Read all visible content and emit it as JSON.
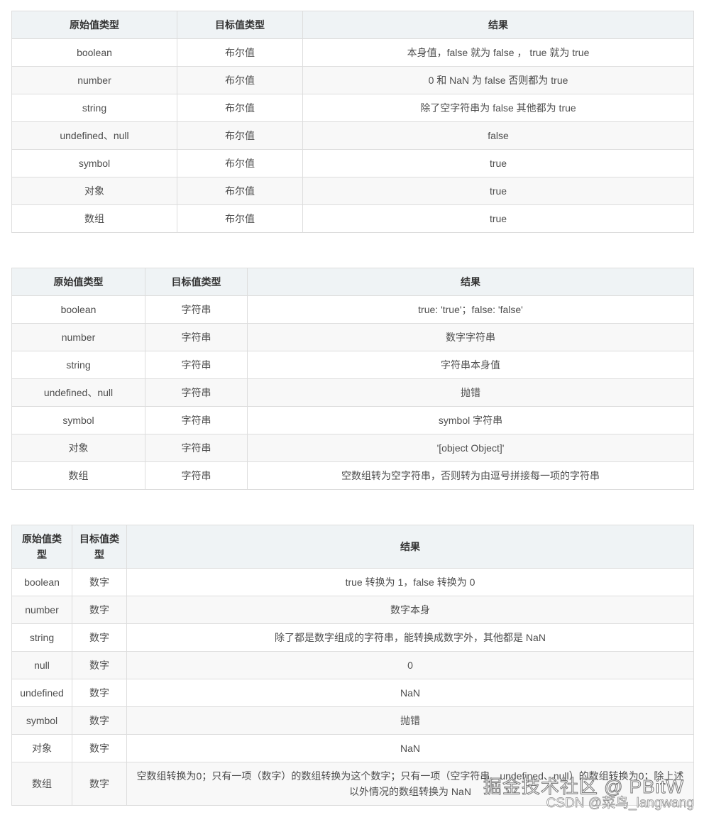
{
  "tables": [
    {
      "headers": [
        "原始值类型",
        "目标值类型",
        "结果"
      ],
      "col_widths_note": "",
      "rows": [
        [
          "boolean",
          "布尔值",
          "本身值，false 就为 false ， true 就为 true"
        ],
        [
          "number",
          "布尔值",
          "0 和 NaN 为 false 否则都为 true"
        ],
        [
          "string",
          "布尔值",
          "除了空字符串为 false 其他都为 true"
        ],
        [
          "undefined、null",
          "布尔值",
          "false"
        ],
        [
          "symbol",
          "布尔值",
          "true"
        ],
        [
          "对象",
          "布尔值",
          "true"
        ],
        [
          "数组",
          "布尔值",
          "true"
        ]
      ]
    },
    {
      "headers": [
        "原始值类型",
        "目标值类型",
        "结果"
      ],
      "rows": [
        [
          "boolean",
          "字符串",
          "true: 'true'；false: 'false'"
        ],
        [
          "number",
          "字符串",
          "数字字符串"
        ],
        [
          "string",
          "字符串",
          "字符串本身值"
        ],
        [
          "undefined、null",
          "字符串",
          "抛错"
        ],
        [
          "symbol",
          "字符串",
          "symbol 字符串"
        ],
        [
          "对象",
          "字符串",
          "'[object Object]'"
        ],
        [
          "数组",
          "字符串",
          "空数组转为空字符串，否则转为由逗号拼接每一项的字符串"
        ]
      ]
    },
    {
      "headers": [
        "原始值类型",
        "目标值类型",
        "结果"
      ],
      "rows": [
        [
          "boolean",
          "数字",
          "true 转换为 1，false 转换为 0"
        ],
        [
          "number",
          "数字",
          "数字本身"
        ],
        [
          "string",
          "数字",
          "除了都是数字组成的字符串，能转换成数字外，其他都是 NaN"
        ],
        [
          "null",
          "数字",
          "0"
        ],
        [
          "undefined",
          "数字",
          "NaN"
        ],
        [
          "symbol",
          "数字",
          "抛错"
        ],
        [
          "对象",
          "数字",
          "NaN"
        ],
        [
          "数组",
          "数字",
          "空数组转换为0；只有一项（数字）的数组转换为这个数字；只有一项（空字符串、undefined、null）的数组转换为0；除上述以外情况的数组转换为 NaN"
        ]
      ]
    }
  ],
  "watermarks": {
    "juejin": "掘金技术社区 @ PBitW",
    "csdn": "CSDN @菜鸟_langwang"
  }
}
